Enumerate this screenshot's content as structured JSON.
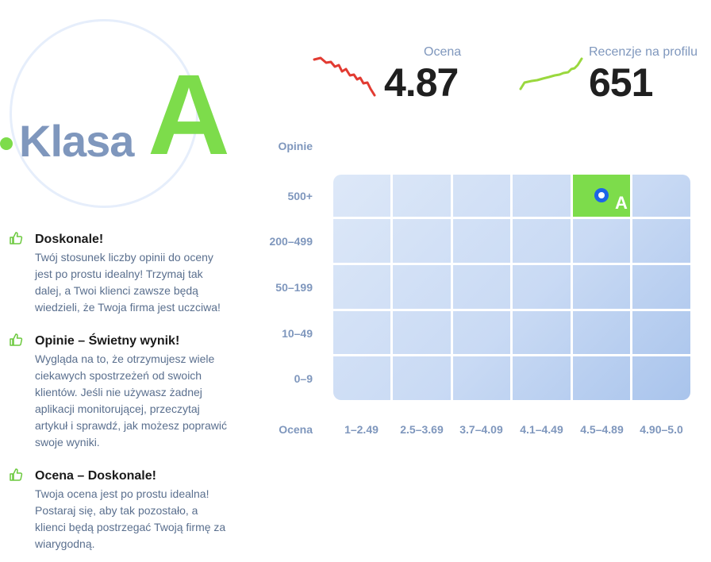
{
  "grade": {
    "word": "Klasa",
    "letter": "A"
  },
  "stats": {
    "rating": {
      "label": "Ocena",
      "value": "4.87"
    },
    "reviews": {
      "label": "Recenzje na profilu",
      "value": "651"
    }
  },
  "grid": {
    "row_axis_label": "Opinie",
    "col_axis_label": "Ocena",
    "rows": [
      "500+",
      "200–499",
      "50–199",
      "10–49",
      "0–9"
    ],
    "cols": [
      "1–2.49",
      "2.5–3.69",
      "3.7–4.09",
      "4.1–4.49",
      "4.5–4.89",
      "4.90–5.0"
    ],
    "active": {
      "row_index": 0,
      "col_index": 4,
      "letter": "A"
    }
  },
  "feedback": [
    {
      "title": "Doskonale!",
      "lines": [
        "Twój stosunek liczby opinii do oceny",
        "jest po prostu idealny! Trzymaj tak",
        "dalej, a Twoi klienci zawsze będą",
        "wiedzieli, że Twoja firma jest uczciwa!"
      ]
    },
    {
      "title": "Opinie – Świetny wynik!",
      "lines": [
        "Wygląda na to, że otrzymujesz wiele",
        "ciekawych spostrzeżeń od swoich",
        "klientów. Jeśli nie używasz żadnej",
        "aplikacji monitorującej, przeczytaj",
        "artykuł i sprawdź, jak możesz poprawić",
        "swoje wyniki."
      ]
    },
    {
      "title": "Ocena – Doskonale!",
      "lines": [
        "Twoja ocena jest po prostu idealna!",
        "Postaraj się, aby tak pozostało, a",
        "klienci będą postrzegać Twoją firmę za",
        "wiarygodną."
      ]
    }
  ],
  "colors": {
    "accent_green": "#7ddc4b",
    "trend_red": "#e23b32",
    "trend_green": "#9ad83e",
    "label_blue": "#7f97bd",
    "marker_blue": "#1d64e8"
  },
  "icons": [
    "thumbs-up-icon",
    "trend-down-icon",
    "trend-up-icon"
  ]
}
